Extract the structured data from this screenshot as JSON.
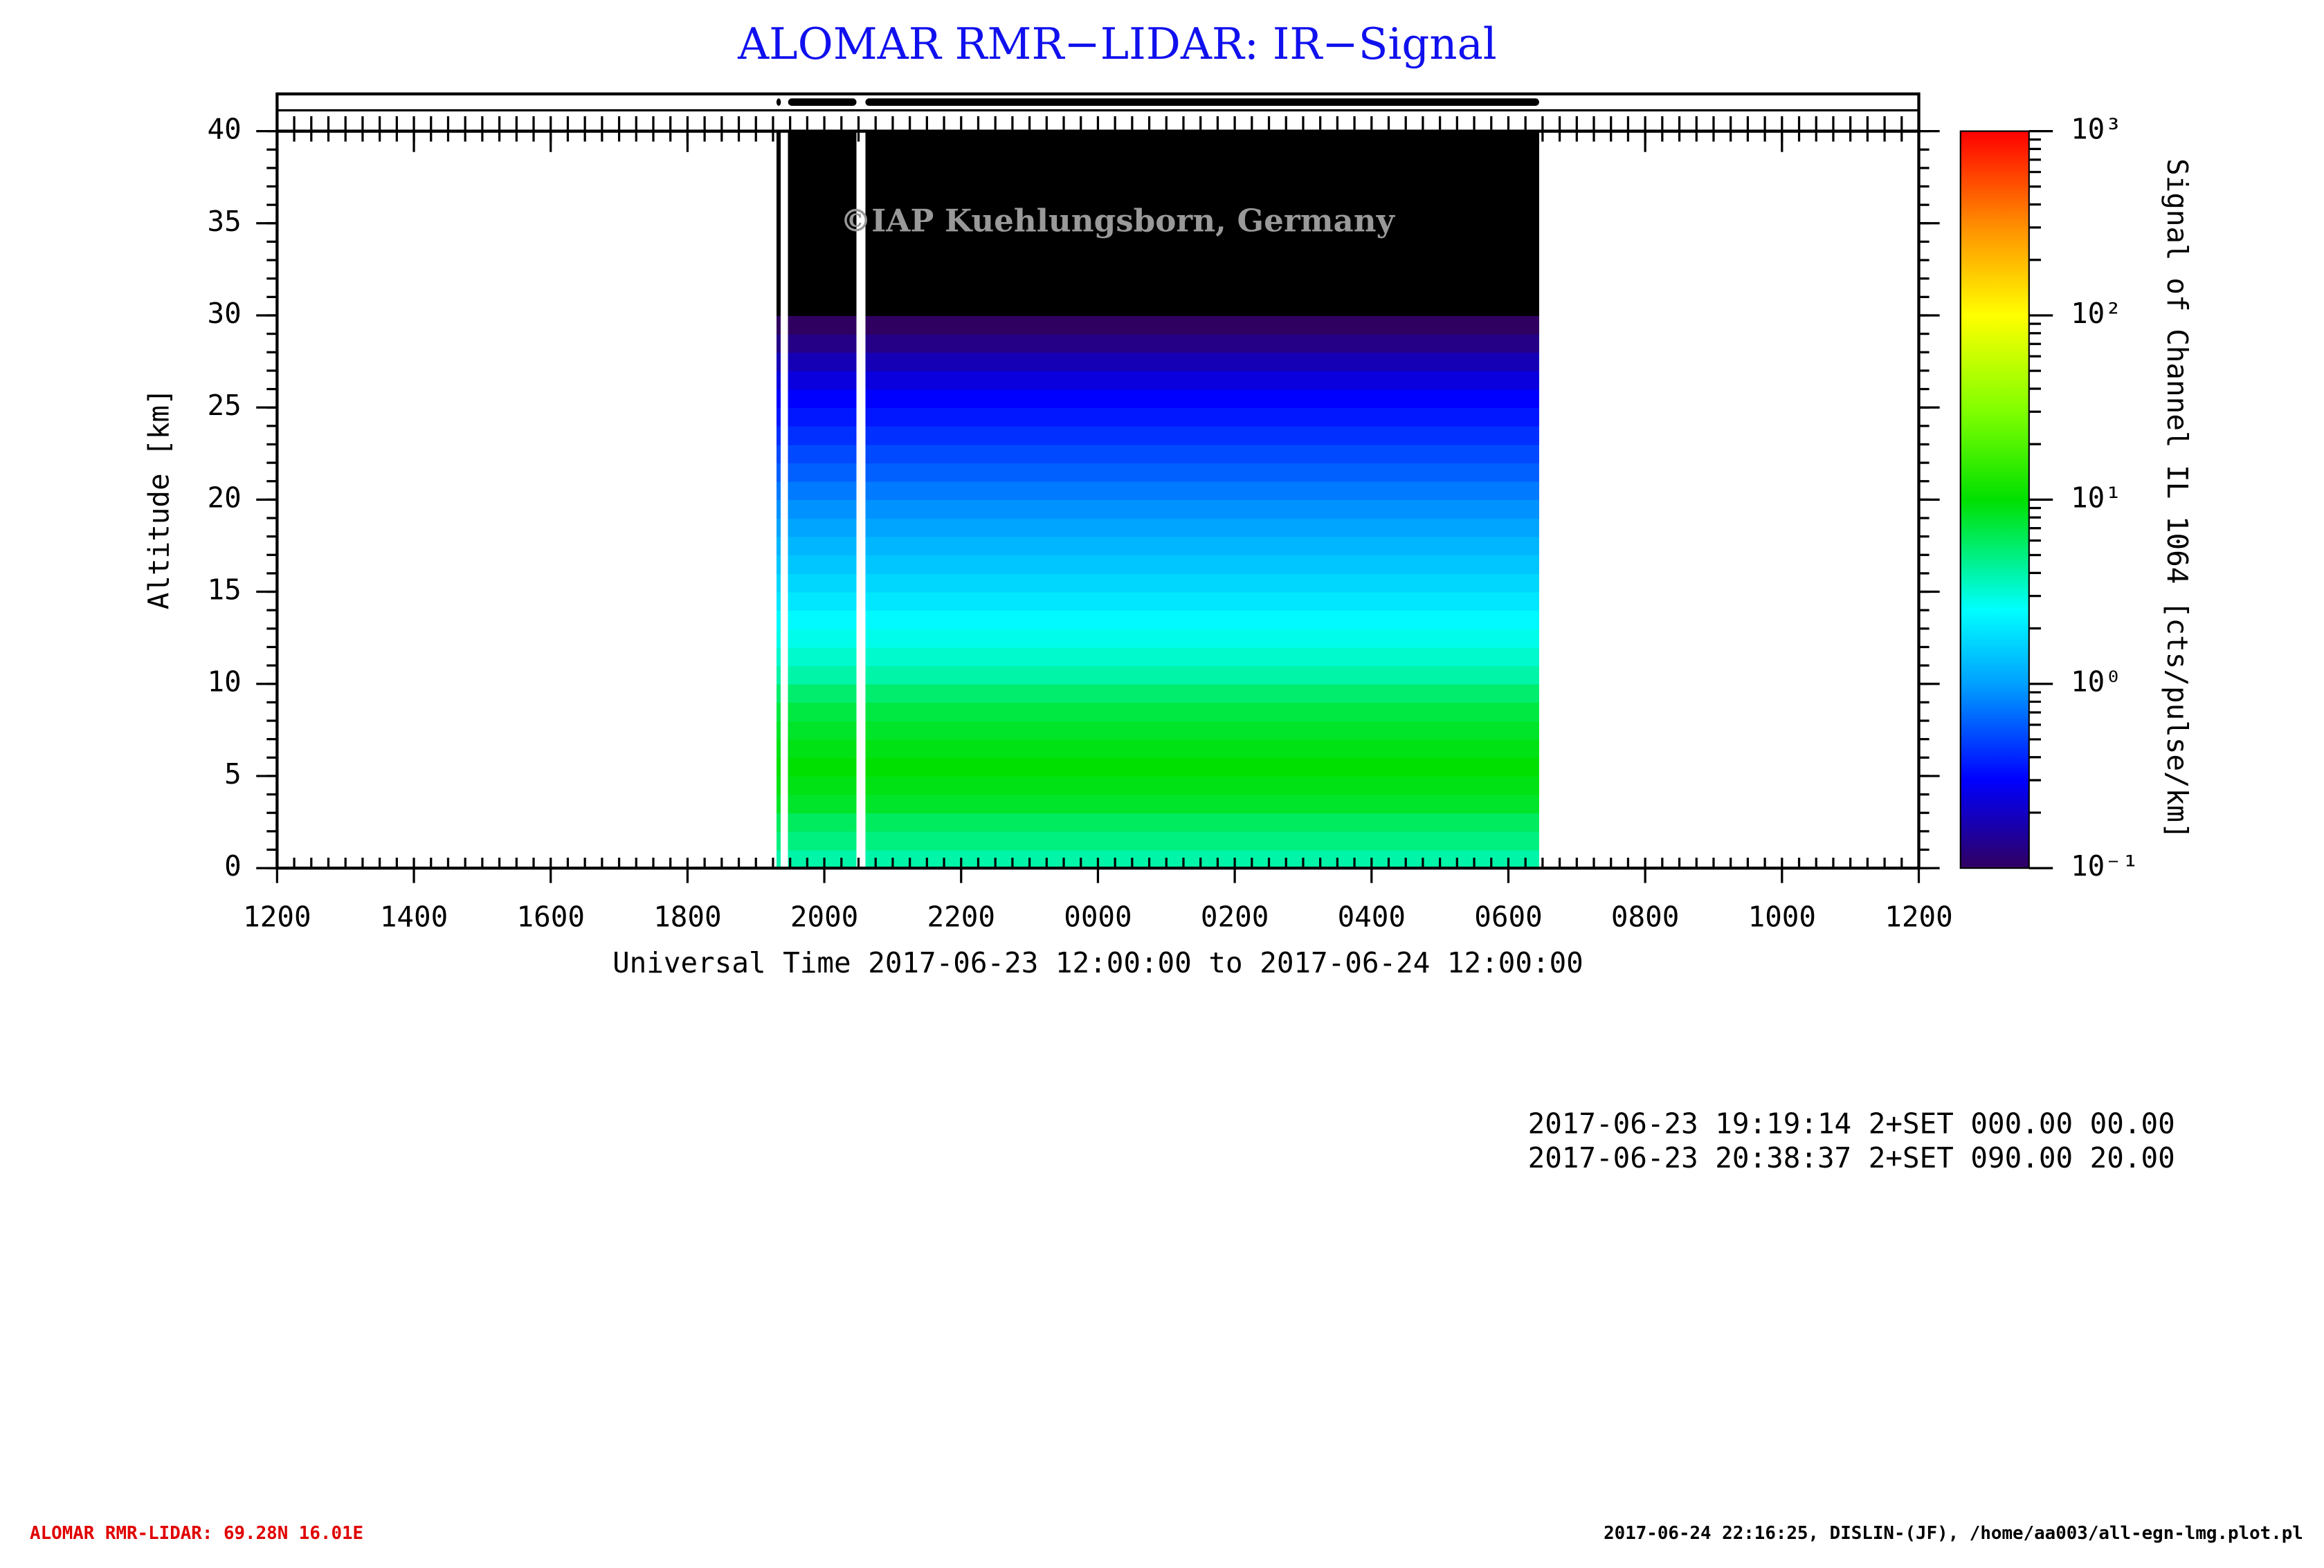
{
  "chart_data": {
    "type": "heatmap",
    "title": "ALOMAR RMR−LIDAR: IR−Signal",
    "watermark": "©IAP Kuehlungsborn, Germany",
    "xlabel": "Universal Time 2017-06-23 12:00:00 to 2017-06-24 12:00:00",
    "ylabel": "Altitude [km]",
    "colorbar_label": "Signal of Channel IL 1064 [cts/pulse/km]",
    "xlim": [
      12,
      36
    ],
    "xticks": [
      {
        "value": 12,
        "label": "1200"
      },
      {
        "value": 14,
        "label": "1400"
      },
      {
        "value": 16,
        "label": "1600"
      },
      {
        "value": 18,
        "label": "1800"
      },
      {
        "value": 20,
        "label": "2000"
      },
      {
        "value": 22,
        "label": "2200"
      },
      {
        "value": 24,
        "label": "0000"
      },
      {
        "value": 26,
        "label": "0200"
      },
      {
        "value": 28,
        "label": "0400"
      },
      {
        "value": 30,
        "label": "0600"
      },
      {
        "value": 32,
        "label": "0800"
      },
      {
        "value": 34,
        "label": "1000"
      },
      {
        "value": 36,
        "label": "1200"
      }
    ],
    "ylim": [
      0,
      40
    ],
    "yticks": [
      0,
      5,
      10,
      15,
      20,
      25,
      30,
      35,
      40
    ],
    "segments": [
      [
        19.3,
        19.36
      ],
      [
        19.47,
        20.47
      ],
      [
        20.6,
        30.45
      ]
    ],
    "y_bins": [
      0,
      1,
      2,
      3,
      4,
      5,
      6,
      7,
      8,
      9,
      10,
      11,
      12,
      13,
      14,
      15,
      16,
      17,
      18,
      19,
      20,
      21,
      22,
      23,
      24,
      25,
      26,
      27,
      28,
      29,
      30,
      31,
      32,
      33,
      34,
      35,
      36,
      37,
      38,
      39,
      40
    ],
    "values": [
      4,
      5,
      6,
      8,
      9,
      10,
      9,
      8,
      7,
      5.5,
      4,
      3.3,
      2.8,
      2.4,
      2,
      1.7,
      1.45,
      1.25,
      1.05,
      0.9,
      0.75,
      0.62,
      0.52,
      0.43,
      0.36,
      0.3,
      0.24,
      0.18,
      0.13,
      0.1,
      0.05,
      0.05,
      0.05,
      0.05,
      0.05,
      0.05,
      0.05,
      0.05,
      0.05,
      0.05
    ],
    "log_color": true,
    "clim": [
      0.1,
      1000
    ],
    "cticks": [
      {
        "value": 1000,
        "label": "10³"
      },
      {
        "value": 100,
        "label": "10²"
      },
      {
        "value": 10,
        "label": "10¹"
      },
      {
        "value": 1,
        "label": "10⁰"
      },
      {
        "value": 0.1,
        "label": "10⁻¹"
      }
    ],
    "notes": [
      "2017-06-23 19:19:14 2+SET 000.00 00.00",
      "2017-06-23 20:38:37 2+SET 090.00 20.00"
    ],
    "footer_left": "ALOMAR RMR-LIDAR: 69.28N 16.01E",
    "footer_right": "2017-06-24 22:16:25, DISLIN-(JF), /home/aa003/all-egn-lmg.plot.pl"
  }
}
